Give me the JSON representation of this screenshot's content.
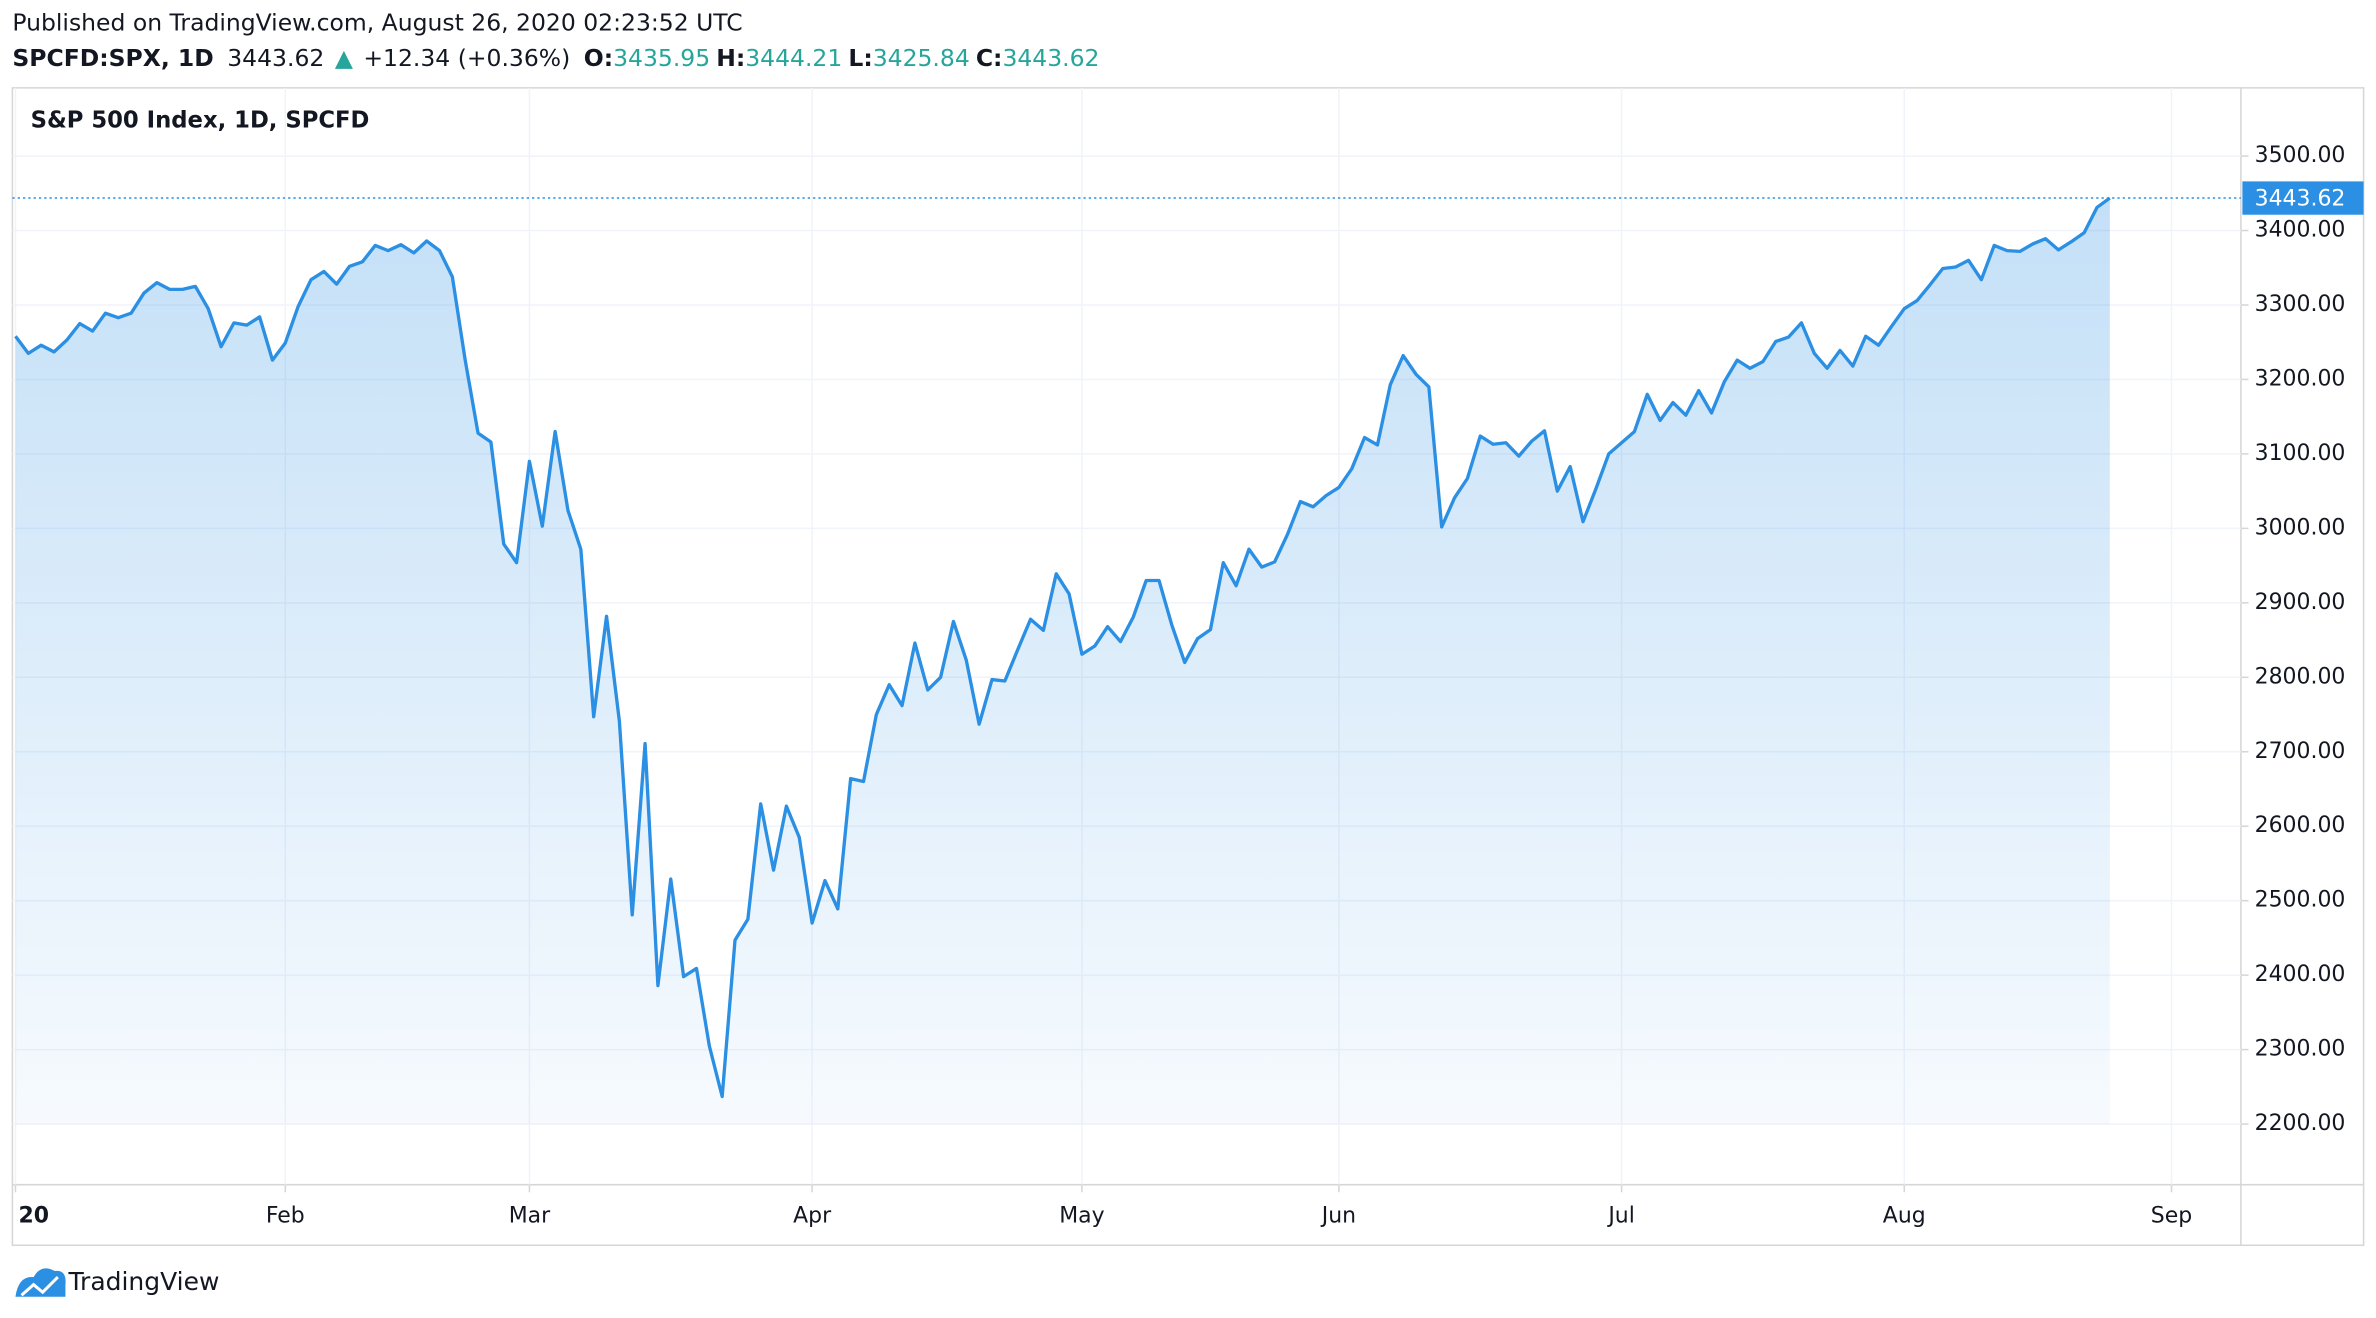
{
  "header": {
    "published": "Published on TradingView.com, August 26, 2020 02:23:52 UTC",
    "symbol": "SPCFD:SPX, 1D",
    "last": "3443.62",
    "arrow": "▲",
    "change": "+12.34 (+0.36%)",
    "ohlc": [
      {
        "label": "O:",
        "value": "3435.95"
      },
      {
        "label": "H:",
        "value": "3444.21"
      },
      {
        "label": "L:",
        "value": "3425.84"
      },
      {
        "label": "C:",
        "value": "3443.62"
      }
    ]
  },
  "chart_data": {
    "type": "area",
    "title": "S&P 500 Index, 1D, SPCFD",
    "color": "#2b8fe3",
    "values": [
      3258,
      3235,
      3246,
      3237,
      3253,
      3275,
      3265,
      3289,
      3283,
      3289,
      3316,
      3330,
      3321,
      3321,
      3325,
      3295,
      3244,
      3276,
      3273,
      3284,
      3226,
      3249,
      3298,
      3334,
      3345,
      3328,
      3352,
      3358,
      3380,
      3373,
      3381,
      3370,
      3386,
      3373,
      3338,
      3226,
      3128,
      3116,
      2979,
      2954,
      3090,
      3003,
      3130,
      3024,
      2972,
      2747,
      2882,
      2741,
      2481,
      2711,
      2386,
      2529,
      2398,
      2409,
      2305,
      2237,
      2447,
      2475,
      2630,
      2541,
      2627,
      2585,
      2470,
      2527,
      2489,
      2664,
      2660,
      2750,
      2790,
      2762,
      2846,
      2783,
      2800,
      2875,
      2823,
      2737,
      2797,
      2795,
      2837,
      2878,
      2863,
      2939,
      2912,
      2831,
      2842,
      2868,
      2848,
      2881,
      2930,
      2930,
      2870,
      2820,
      2852,
      2864,
      2954,
      2923,
      2972,
      2948,
      2955,
      2992,
      3036,
      3029,
      3044,
      3055,
      3080,
      3122,
      3112,
      3193,
      3232,
      3207,
      3190,
      3002,
      3041,
      3067,
      3124,
      3113,
      3115,
      3097,
      3117,
      3131,
      3050,
      3083,
      3009,
      3053,
      3100,
      3115,
      3130,
      3180,
      3145,
      3169,
      3152,
      3185,
      3155,
      3197,
      3226,
      3215,
      3224,
      3251,
      3257,
      3276,
      3235,
      3215,
      3239,
      3218,
      3258,
      3246,
      3271,
      3295,
      3306,
      3327,
      3349,
      3351,
      3360,
      3334,
      3380,
      3373,
      3372,
      3382,
      3389,
      3374,
      3385,
      3397,
      3431,
      3443.62
    ],
    "xlim": [
      -0.24,
      173.2
    ],
    "xticks": [
      {
        "value": 0,
        "label": "20"
      },
      {
        "value": 21,
        "label": "Feb"
      },
      {
        "value": 40,
        "label": "Mar"
      },
      {
        "value": 62,
        "label": "Apr"
      },
      {
        "value": 83,
        "label": "May"
      },
      {
        "value": 103,
        "label": "Jun"
      },
      {
        "value": 125,
        "label": "Jul"
      },
      {
        "value": 147,
        "label": "Aug"
      },
      {
        "value": 167.8,
        "label": "Sep"
      }
    ],
    "ylim": [
      2118.6,
      3591.6
    ],
    "yticks": [
      {
        "value": 2200,
        "label": "2200.00"
      },
      {
        "value": 2300,
        "label": "2300.00"
      },
      {
        "value": 2400,
        "label": "2400.00"
      },
      {
        "value": 2500,
        "label": "2500.00"
      },
      {
        "value": 2600,
        "label": "2600.00"
      },
      {
        "value": 2700,
        "label": "2700.00"
      },
      {
        "value": 2800,
        "label": "2800.00"
      },
      {
        "value": 2900,
        "label": "2900.00"
      },
      {
        "value": 3000,
        "label": "3000.00"
      },
      {
        "value": 3100,
        "label": "3100.00"
      },
      {
        "value": 3200,
        "label": "3200.00"
      },
      {
        "value": 3300,
        "label": "3300.00"
      },
      {
        "value": 3400,
        "label": "3400.00"
      },
      {
        "value": 3500,
        "label": "3500.00"
      }
    ],
    "grid": true
  },
  "footer": {
    "brand": "TradingView"
  }
}
